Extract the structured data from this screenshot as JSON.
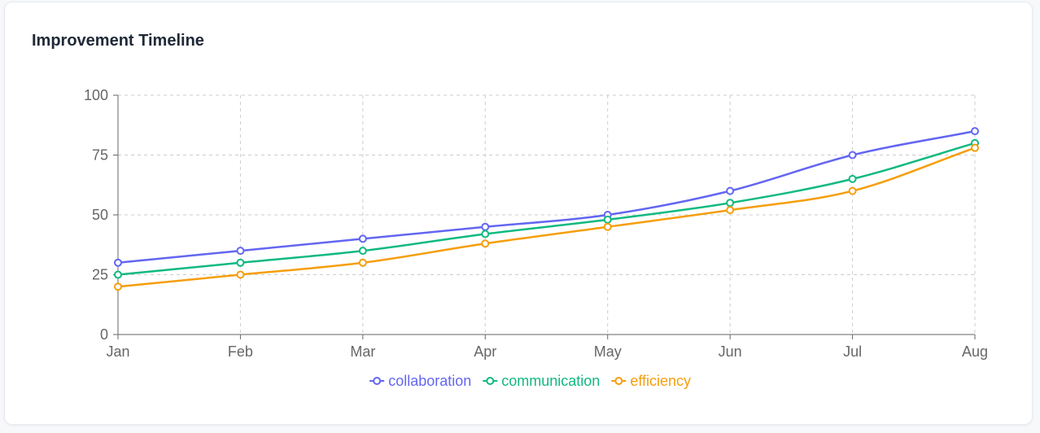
{
  "card": {
    "title": "Improvement Timeline"
  },
  "chart_data": {
    "type": "line",
    "title": "Improvement Timeline",
    "xlabel": "",
    "ylabel": "",
    "categories": [
      "Jan",
      "Feb",
      "Mar",
      "Apr",
      "May",
      "Jun",
      "Jul",
      "Aug"
    ],
    "ylim": [
      0,
      100
    ],
    "yticks": [
      "0",
      "25",
      "50",
      "75",
      "100"
    ],
    "grid": true,
    "legend_position": "bottom-center",
    "series": [
      {
        "name": "collaboration",
        "color": "#6366f1",
        "values": [
          30,
          35,
          40,
          45,
          50,
          60,
          75,
          85
        ]
      },
      {
        "name": "communication",
        "color": "#10b981",
        "values": [
          25,
          30,
          35,
          42,
          48,
          55,
          65,
          80
        ]
      },
      {
        "name": "efficiency",
        "color": "#f59e0b",
        "values": [
          20,
          25,
          30,
          38,
          45,
          52,
          60,
          78
        ]
      }
    ]
  }
}
